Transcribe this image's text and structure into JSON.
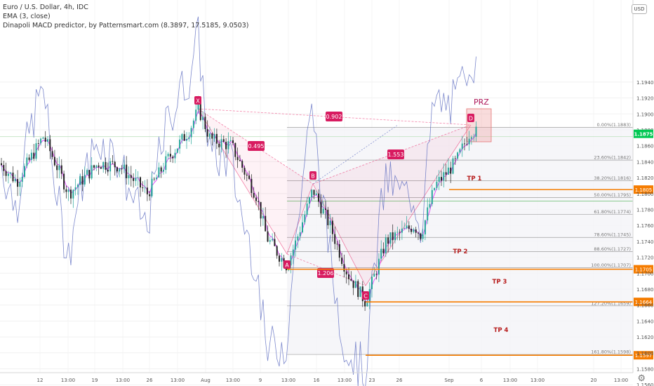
{
  "header": {
    "symbol_line": "Euro / U.S. Dollar, 4h, IDC",
    "ema_line": "EMA (3, close)",
    "macd_line": "Dinapoli MACD predictor, by Patternsmart.com (8.3897, 17.5185, 9.0503)",
    "currency_button": "USD"
  },
  "chart_data": {
    "type": "candlestick",
    "instrument": "Euro / U.S. Dollar",
    "timeframe": "4h",
    "y_ticks": [
      "1.1940",
      "1.1920",
      "1.1900",
      "1.1880",
      "1.1860",
      "1.1840",
      "1.1820",
      "1.1800",
      "1.1780",
      "1.1760",
      "1.1740",
      "1.1720",
      "1.1700",
      "1.1680",
      "1.1660",
      "1.1640",
      "1.1620",
      "1.1600",
      "1.1580",
      "1.1560"
    ],
    "x_ticks": [
      "12",
      "13:00",
      "19",
      "13:00",
      "26",
      "13:00",
      "Aug",
      "13:00",
      "9",
      "13:00",
      "16",
      "13:00",
      "23",
      "26",
      "Sep",
      "6",
      "13:00",
      "13:00",
      "20",
      "13:00"
    ],
    "price_ticks_values": [
      1.194,
      1.192,
      1.19,
      1.188,
      1.186,
      1.184,
      1.182,
      1.18,
      1.178,
      1.176,
      1.174,
      1.172,
      1.17,
      1.168,
      1.166,
      1.164,
      1.162,
      1.16,
      1.158,
      1.156
    ],
    "current_price": "1.1875",
    "pattern": {
      "points": [
        {
          "label": "X",
          "price": 1.1906
        },
        {
          "label": "A",
          "price": 1.1707
        },
        {
          "label": "B",
          "price": 1.1805
        },
        {
          "label": "C",
          "price": 1.1664
        },
        {
          "label": "D",
          "price": 1.1883
        }
      ],
      "ratios": [
        {
          "label": "0.902"
        },
        {
          "label": "0.495"
        },
        {
          "label": "1.553"
        },
        {
          "label": "1.206"
        }
      ],
      "prz_label": "PRZ"
    },
    "fib_levels": [
      {
        "label": "0.00%(1.1883)",
        "price": 1.1883
      },
      {
        "label": "23.60%(1.1842)",
        "price": 1.1842
      },
      {
        "label": "38.20%(1.1816)",
        "price": 1.1816
      },
      {
        "label": "50.00%(1.1795)",
        "price": 1.1795
      },
      {
        "label": "61.80%(1.1774)",
        "price": 1.1774
      },
      {
        "label": "78.60%(1.1745)",
        "price": 1.1745
      },
      {
        "label": "88.60%(1.1727)",
        "price": 1.1727
      },
      {
        "label": "100.00%(1.1707)",
        "price": 1.1707
      },
      {
        "label": "127.20%(1.1659)",
        "price": 1.1659
      },
      {
        "label": "161.80%(1.1598)",
        "price": 1.1598
      }
    ],
    "targets": [
      {
        "label": "TP 1",
        "price": 1.1805,
        "badge": "1.1805"
      },
      {
        "label": "TP 2",
        "price": 1.1705,
        "badge": "1.1705"
      },
      {
        "label": "TP 3",
        "price": 1.1664,
        "badge": "1.1664"
      },
      {
        "label": "TP 4",
        "price": 1.1597,
        "badge": "1.1597"
      }
    ],
    "colors": {
      "up": "#26a69a",
      "down": "#222222",
      "pattern": "#e91e63",
      "target": "#f57c00",
      "ema": "#e040fb",
      "macd": "#5c6bc0"
    }
  }
}
